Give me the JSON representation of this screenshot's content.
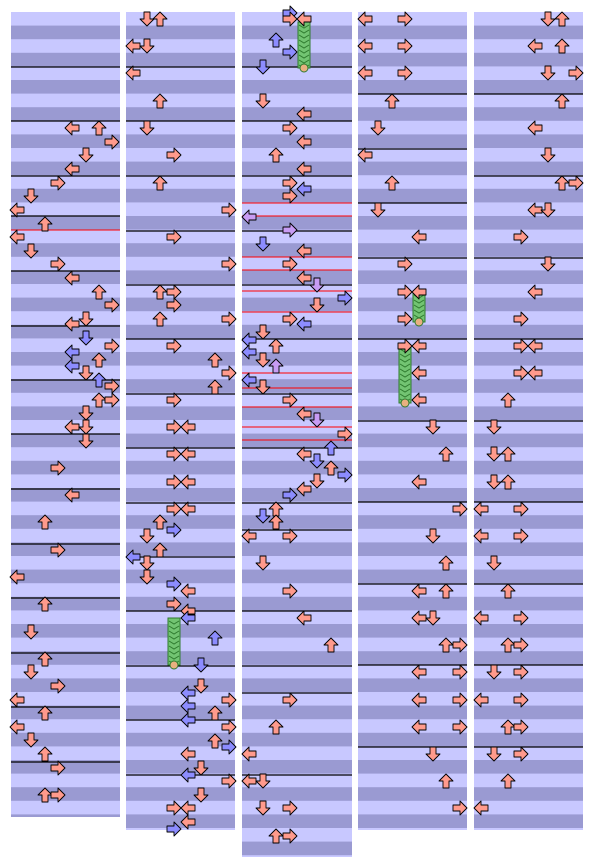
{
  "chart": {
    "game": "step chart",
    "note_colors": {
      "red": "#ff9a8c",
      "blue": "#8c8cff",
      "violet": "#c89cf4",
      "green_hold": "#4cae4c",
      "hold_fill": "#72c472"
    },
    "lane_colors": {
      "light": "#c8c8ff",
      "dark": "#9a9ad2",
      "measure_line": "#000000",
      "red_marker": "#ff0000"
    },
    "directions": [
      "left",
      "down",
      "up",
      "right"
    ],
    "columns": [
      {
        "id": "col1",
        "rows": 30
      },
      {
        "id": "col2",
        "rows": 30.5
      },
      {
        "id": "col3",
        "rows": 31.5
      },
      {
        "id": "col4",
        "rows": 30.5
      },
      {
        "id": "col5",
        "rows": 30.5
      }
    ]
  }
}
